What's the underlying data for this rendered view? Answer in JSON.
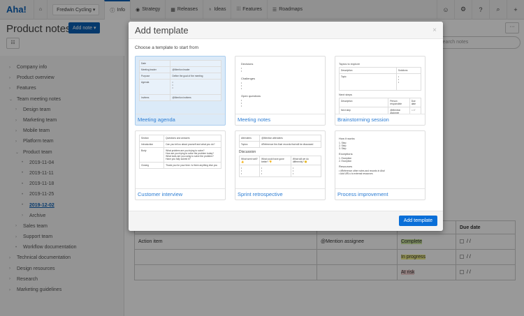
{
  "nav": {
    "logo": "Aha!",
    "workspace": "Fredwin Cycling",
    "tabs": [
      "Info",
      "Strategy",
      "Releases",
      "Ideas",
      "Features",
      "Roadmaps"
    ],
    "icons": [
      "home-icon",
      "settings-icon",
      "help-icon",
      "search-icon",
      "plus-icon"
    ]
  },
  "page": {
    "title": "Product notes",
    "add_note": "Add note ▾",
    "search_placeholder": "Search notes",
    "more": "···"
  },
  "sidebar": [
    {
      "label": "Company info",
      "lvl": 0,
      "m": "›"
    },
    {
      "label": "Product overview",
      "lvl": 0,
      "m": "›"
    },
    {
      "label": "Features",
      "lvl": 0,
      "m": "›"
    },
    {
      "label": "Team meeting notes",
      "lvl": 0,
      "m": "⌄"
    },
    {
      "label": "Design team",
      "lvl": 1,
      "m": "›"
    },
    {
      "label": "Marketing team",
      "lvl": 1,
      "m": "›"
    },
    {
      "label": "Mobile team",
      "lvl": 1,
      "m": "›"
    },
    {
      "label": "Platform team",
      "lvl": 1,
      "m": "›"
    },
    {
      "label": "Product team",
      "lvl": 1,
      "m": "⌄"
    },
    {
      "label": "2019-11-04",
      "lvl": 2,
      "m": "•"
    },
    {
      "label": "2019-11-11",
      "lvl": 2,
      "m": "•"
    },
    {
      "label": "2019-11-18",
      "lvl": 2,
      "m": "•"
    },
    {
      "label": "2019-11-25",
      "lvl": 2,
      "m": "•"
    },
    {
      "label": "2019-12-02",
      "lvl": 2,
      "m": "•",
      "current": true
    },
    {
      "label": "Archive",
      "lvl": 2,
      "m": "›"
    },
    {
      "label": "Sales team",
      "lvl": 1,
      "m": "›"
    },
    {
      "label": "Support team",
      "lvl": 1,
      "m": "›"
    },
    {
      "label": "Workflow documentation",
      "lvl": 1,
      "m": "•"
    },
    {
      "label": "Technical documentation",
      "lvl": 0,
      "m": "›"
    },
    {
      "label": "Design resources",
      "lvl": 0,
      "m": "›"
    },
    {
      "label": "Research",
      "lvl": 0,
      "m": "›"
    },
    {
      "label": "Marketing guidelines",
      "lvl": 0,
      "m": "›"
    }
  ],
  "bgtable": {
    "due_header": "Due date",
    "rows": [
      {
        "item": "Action item",
        "assignee": "@Mention assignee",
        "status": "Complete",
        "date": "/ /"
      },
      {
        "item": "",
        "assignee": "",
        "status": "In progress",
        "date": "/ /"
      },
      {
        "item": "",
        "assignee": "",
        "status": "At risk",
        "date": "/ /"
      }
    ]
  },
  "modal": {
    "title": "Add template",
    "close": "×",
    "subtitle": "Choose a template to start from",
    "submit": "Add template",
    "templates": [
      "Meeting agenda",
      "Meeting notes",
      "Brainstorming session",
      "Customer interview",
      "Sprint retrospective",
      "Process improvement"
    ],
    "thumb": {
      "agenda": [
        "Date",
        "Meeting leader",
        "@Mention leader",
        "Purpose",
        "Define the goal of the meeting",
        "Agenda",
        "Invitees",
        "@Mention invitees"
      ],
      "notes": [
        "Decisions",
        "Challenges",
        "Open questions"
      ],
      "brainstorm": [
        "Topics to explore",
        "Description",
        "Solutions",
        "Topic",
        "Next steps",
        "Person responsible",
        "Due date",
        "Next step",
        "@Mention assignee"
      ],
      "interview": [
        "Section",
        "Questions and answers",
        "Introduction",
        "Can you tell us about yourself and what you do?",
        "Body",
        "What problem are you trying to solve?",
        "How are you trying to solve the problem today?",
        "What tools are you using to solve the problem?",
        "Have you fully solved it?",
        "Closing",
        "Thank you for your time. Is there anything else you"
      ],
      "retro": [
        "Attendees",
        "@Mention attendees",
        "Topics",
        "#Reference the Aha! records that will be discussed",
        "Discussion",
        "What went well? 👍",
        "What could have gone better? 👎",
        "What will we do differently? 😊"
      ],
      "process": [
        "How it works",
        "Step",
        "Step",
        "Step",
        "Exceptions",
        "Exception",
        "Exception",
        "Resources",
        "#Reference other notes and records in Aha!",
        "Add URLs to external resources"
      ]
    }
  }
}
